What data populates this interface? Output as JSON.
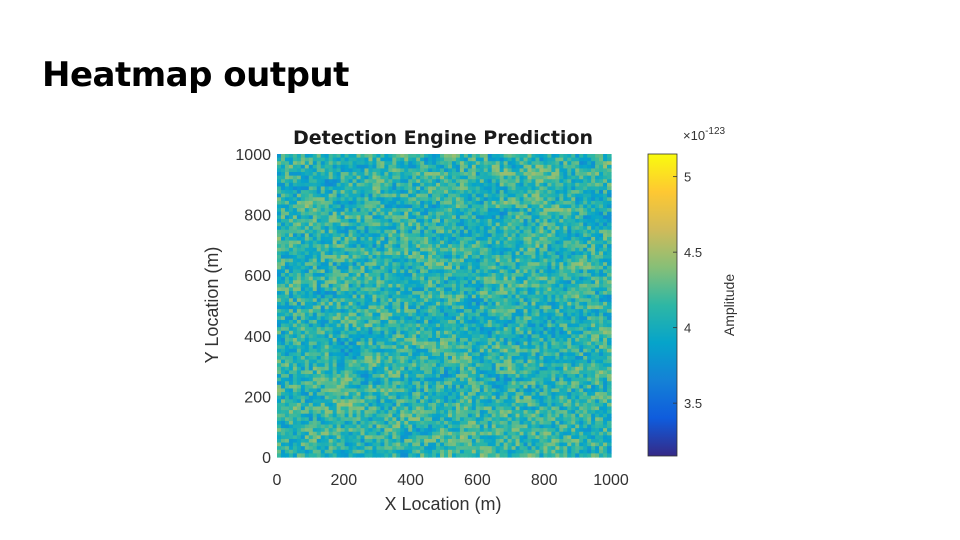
{
  "slide": {
    "title": "Heatmap output"
  },
  "chart_data": {
    "type": "heatmap",
    "title": "Detection Engine Prediction",
    "xlabel": "X Location (m)",
    "ylabel": "Y Location (m)",
    "xlim": [
      0,
      1000
    ],
    "ylim": [
      0,
      1000
    ],
    "x_ticks": [
      0,
      200,
      400,
      600,
      800,
      1000
    ],
    "y_ticks": [
      0,
      200,
      400,
      600,
      800,
      1000
    ],
    "x_tick_labels": [
      "0",
      "200",
      "400",
      "600",
      "800",
      "1000"
    ],
    "y_tick_labels": [
      "0",
      "200",
      "400",
      "600",
      "800",
      "1000"
    ],
    "colormap": "parula",
    "colorbar": {
      "label": "Amplitude",
      "exponent_prefix": "×10",
      "exponent": "-123",
      "range": [
        3.15,
        5.15
      ],
      "ticks": [
        3.5,
        4,
        4.5,
        5
      ],
      "tick_labels": [
        "3.5",
        "4",
        "4.5",
        "5"
      ],
      "colors": [
        "#352a87",
        "#0f5cdd",
        "#1481d6",
        "#06a4ca",
        "#2eb7a4",
        "#87bf77",
        "#d1bb59",
        "#fec832",
        "#f9fb0e"
      ]
    },
    "grid": false,
    "value_distribution": {
      "mean": 4.1,
      "spread": 0.35
    }
  }
}
